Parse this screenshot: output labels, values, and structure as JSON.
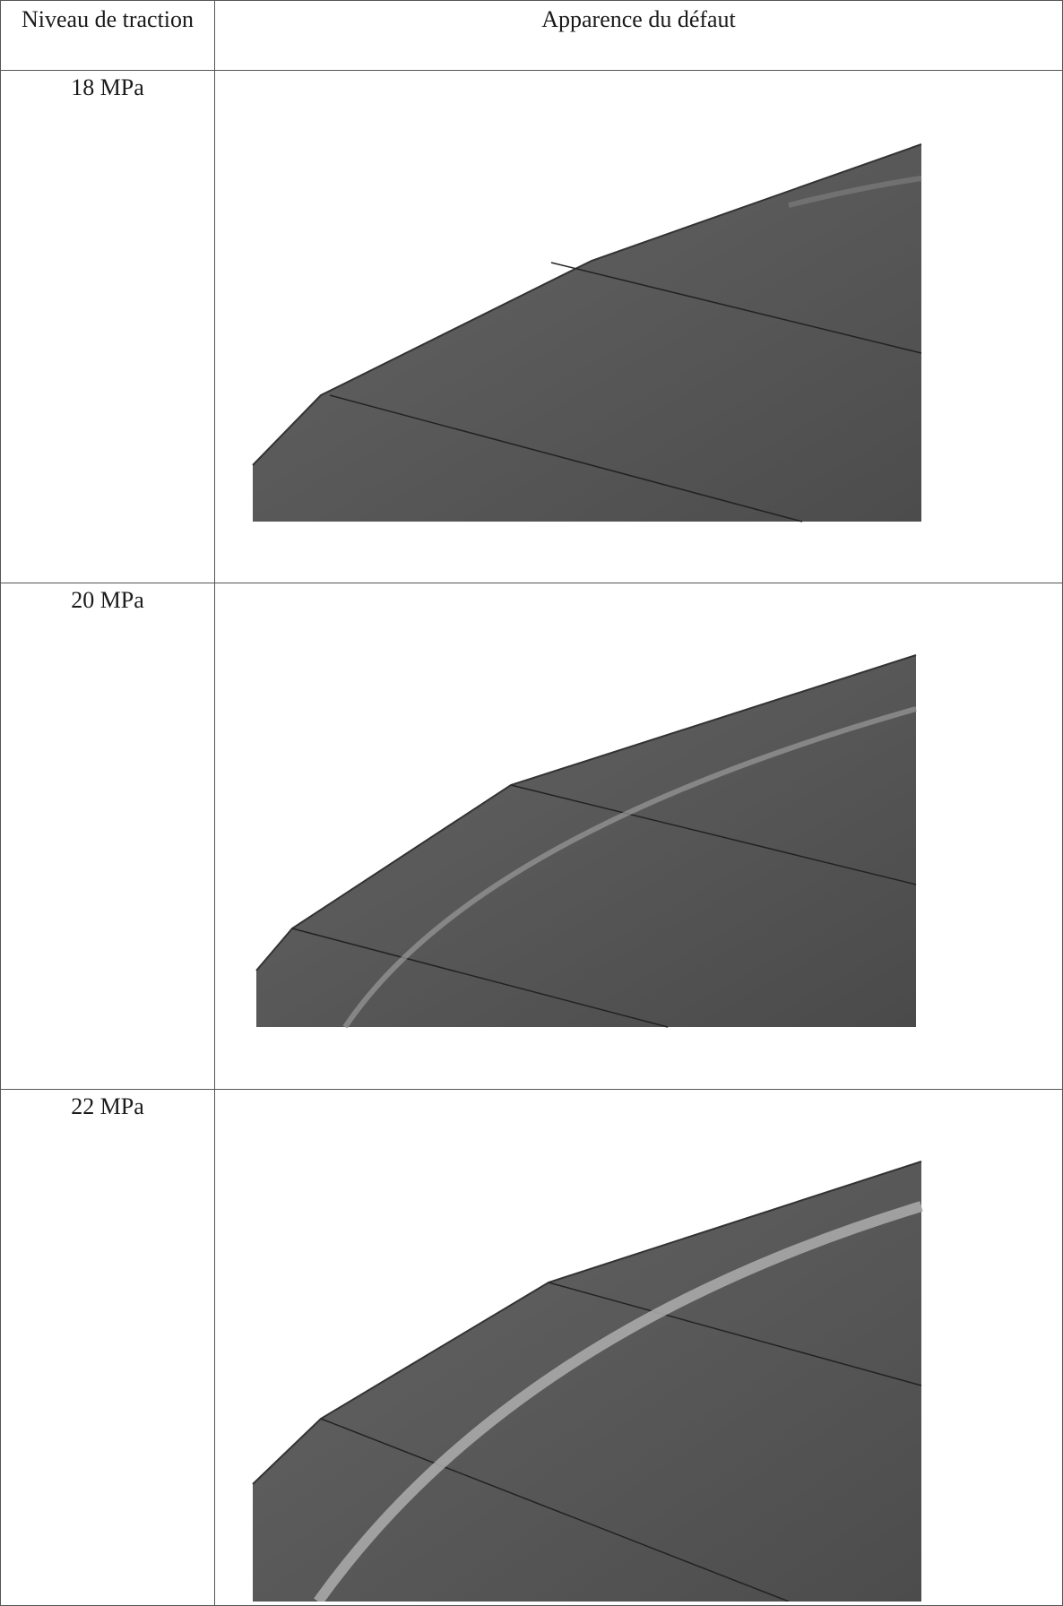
{
  "table": {
    "headers": [
      "Niveau de traction",
      "Apparence du défaut"
    ],
    "rows": [
      {
        "level": "18 MPa",
        "crack_visibility": "faint"
      },
      {
        "level": "20 MPa",
        "crack_visibility": "moderate"
      },
      {
        "level": "22 MPa",
        "crack_visibility": "strong"
      }
    ]
  },
  "colors": {
    "surface": "#5a5a5a",
    "surface_dark": "#4a4a4a",
    "crack": "#9a9a9a",
    "grid_line": "#555555"
  }
}
